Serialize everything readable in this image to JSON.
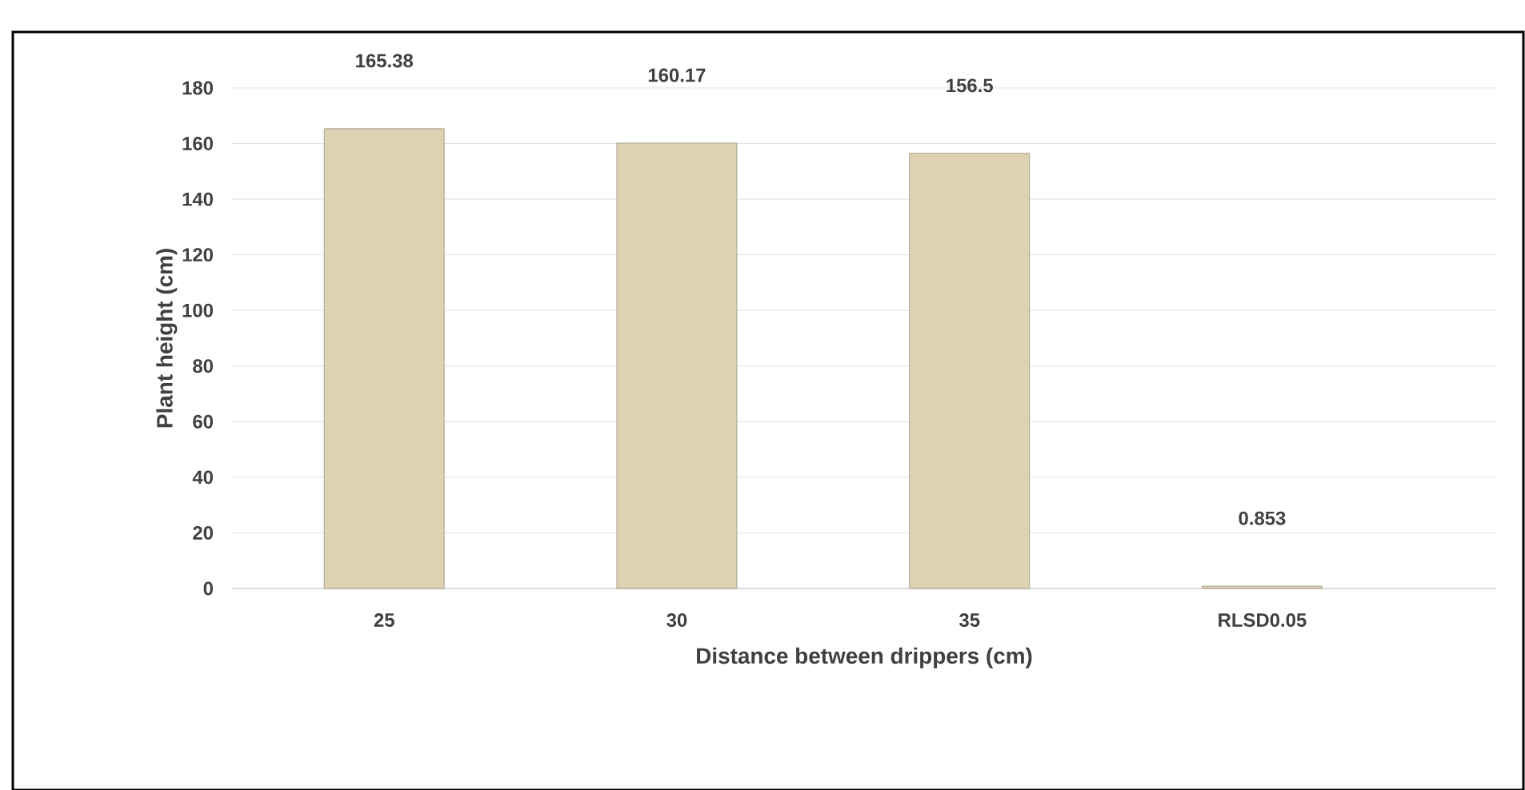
{
  "chart_data": {
    "type": "bar",
    "xlabel": "Distance between drippers (cm)",
    "ylabel": "Plant height (cm)",
    "categories": [
      "25",
      "30",
      "35",
      "RLSD0.05"
    ],
    "values": [
      165.38,
      160.17,
      156.5,
      0.853
    ],
    "color": "#ddd2b2",
    "ylim": [
      0,
      180
    ],
    "yticks": [
      0,
      20,
      40,
      60,
      80,
      100,
      120,
      140,
      160,
      180
    ],
    "value_labels": [
      "165.38",
      "160.17",
      "156.5",
      "0.853"
    ],
    "grid": "y"
  }
}
